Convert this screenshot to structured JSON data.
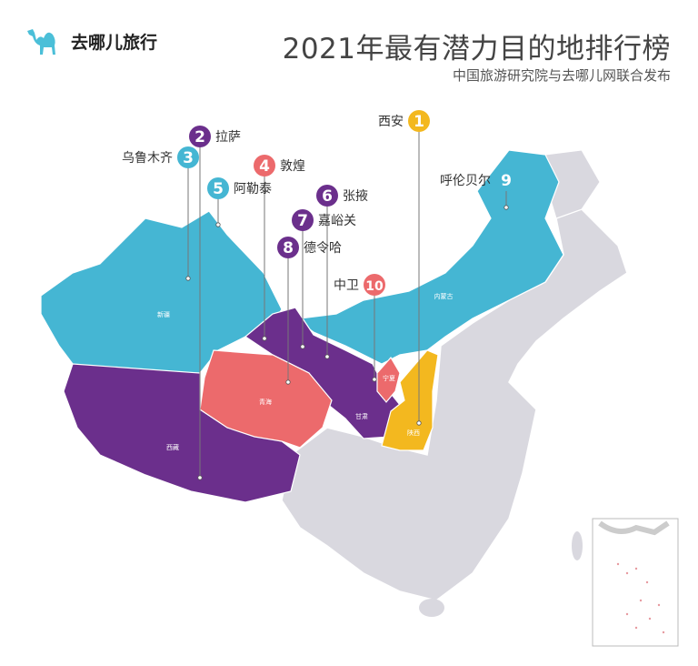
{
  "header": {
    "logo_text": "去哪儿旅行",
    "logo_icon": "camel-icon",
    "title": "2021年最有潜力目的地排行榜",
    "subtitle": "中国旅游研究院与去哪儿网联合发布"
  },
  "colors": {
    "teal": "#45b6d3",
    "purple": "#6b2f8c",
    "coral": "#ec6a6c",
    "yellow": "#f3b81f",
    "grey": "#d9d8df"
  },
  "provinces": [
    {
      "name": "新疆",
      "color": "teal"
    },
    {
      "name": "内蒙古",
      "color": "teal"
    },
    {
      "name": "西藏",
      "color": "purple"
    },
    {
      "name": "甘肃",
      "color": "purple"
    },
    {
      "name": "青海",
      "color": "coral"
    },
    {
      "name": "宁夏",
      "color": "coral"
    },
    {
      "name": "陕西",
      "color": "yellow"
    }
  ],
  "destinations": [
    {
      "rank": "1",
      "name": "西安",
      "color": "yellow"
    },
    {
      "rank": "2",
      "name": "拉萨",
      "color": "purple"
    },
    {
      "rank": "3",
      "name": "乌鲁木齐",
      "color": "teal"
    },
    {
      "rank": "4",
      "name": "敦煌",
      "color": "coral"
    },
    {
      "rank": "5",
      "name": "阿勒泰",
      "color": "teal"
    },
    {
      "rank": "6",
      "name": "张掖",
      "color": "purple"
    },
    {
      "rank": "7",
      "name": "嘉峪关",
      "color": "purple"
    },
    {
      "rank": "8",
      "name": "德令哈",
      "color": "purple"
    },
    {
      "rank": "9",
      "name": "呼伦贝尔",
      "color": "teal"
    },
    {
      "rank": "10",
      "name": "中卫",
      "color": "coral"
    }
  ]
}
